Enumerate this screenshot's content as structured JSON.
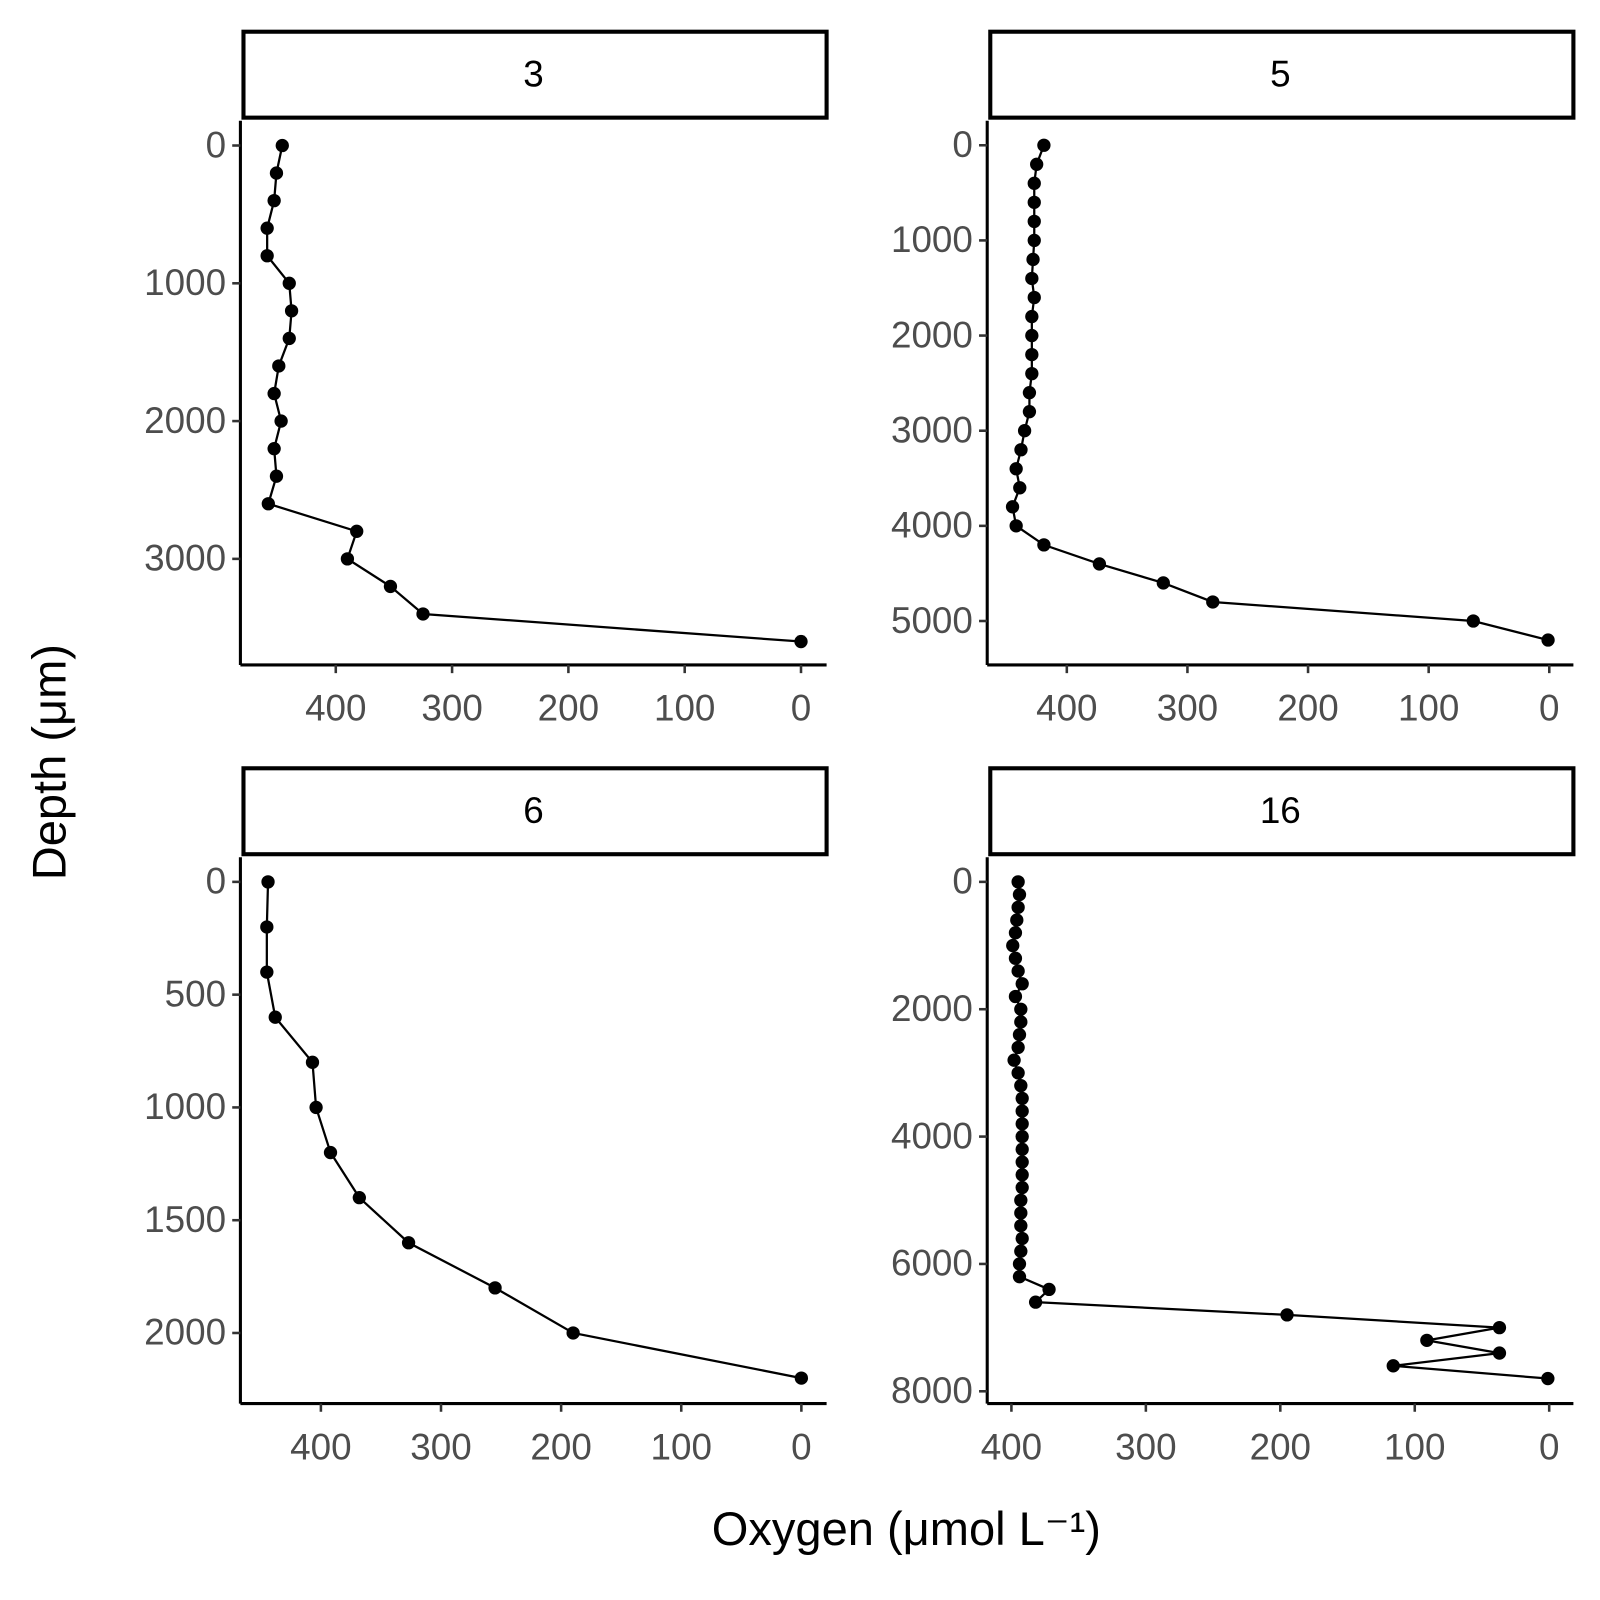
{
  "axis_labels": {
    "x": "Oxygen (μmol L⁻¹)",
    "y": "Depth (μm)"
  },
  "chart_data": [
    {
      "type": "line",
      "title": "3",
      "color": "#000000",
      "x_reversed": true,
      "y_reversed": true,
      "xlim": [
        -22,
        482
      ],
      "ylim": [
        -180,
        3770
      ],
      "xticks": [
        400,
        300,
        200,
        100,
        0
      ],
      "yticks": [
        0,
        1000,
        2000,
        3000
      ],
      "x": [
        446,
        451,
        453,
        459,
        459,
        440,
        438,
        440,
        449,
        453,
        447,
        453,
        451,
        458,
        382,
        390,
        353,
        325,
        0
      ],
      "y": [
        0,
        200,
        400,
        600,
        800,
        1000,
        1200,
        1400,
        1600,
        1800,
        2000,
        2200,
        2400,
        2600,
        2800,
        3000,
        3200,
        3400,
        3600
      ]
    },
    {
      "type": "line",
      "title": "5",
      "color": "#000000",
      "x_reversed": true,
      "y_reversed": true,
      "xlim": [
        -20,
        466
      ],
      "ylim": [
        -258,
        5462
      ],
      "xticks": [
        400,
        300,
        200,
        100,
        0
      ],
      "yticks": [
        0,
        1000,
        2000,
        3000,
        4000,
        5000
      ],
      "x": [
        419,
        425,
        427,
        427,
        427,
        427,
        428,
        429,
        427,
        429,
        429,
        429,
        429,
        431,
        431,
        435,
        438,
        442,
        439,
        445,
        442,
        419,
        373,
        320,
        279,
        63,
        1
      ],
      "y": [
        0,
        200,
        400,
        600,
        800,
        1000,
        1200,
        1400,
        1600,
        1800,
        2000,
        2200,
        2400,
        2600,
        2800,
        3000,
        3200,
        3400,
        3600,
        3800,
        4000,
        4200,
        4400,
        4600,
        4800,
        5000,
        5200
      ]
    },
    {
      "type": "line",
      "title": "6",
      "color": "#000000",
      "x_reversed": true,
      "y_reversed": true,
      "xlim": [
        -21,
        467
      ],
      "ylim": [
        -109,
        2313
      ],
      "xticks": [
        400,
        300,
        200,
        100,
        0
      ],
      "yticks": [
        0,
        500,
        1000,
        1500,
        2000
      ],
      "x": [
        444,
        445,
        445,
        438,
        407,
        404,
        392,
        368,
        327,
        255,
        190,
        0
      ],
      "y": [
        0,
        200,
        400,
        600,
        800,
        1000,
        1200,
        1400,
        1600,
        1800,
        2000,
        2200
      ]
    },
    {
      "type": "line",
      "title": "16",
      "color": "#000000",
      "x_reversed": true,
      "y_reversed": true,
      "xlim": [
        -18,
        418
      ],
      "ylim": [
        -386,
        8193
      ],
      "xticks": [
        400,
        300,
        200,
        100,
        0
      ],
      "yticks": [
        0,
        2000,
        4000,
        6000,
        8000
      ],
      "x": [
        395,
        394,
        395,
        396,
        397,
        399,
        397,
        395,
        392,
        397,
        393,
        393,
        394,
        395,
        398,
        395,
        393,
        392,
        392,
        392,
        392,
        392,
        392,
        392,
        392,
        393,
        393,
        393,
        392,
        393,
        394,
        394,
        372,
        382,
        195,
        37,
        91,
        37,
        116,
        1
      ],
      "y": [
        0,
        200,
        400,
        600,
        800,
        1000,
        1200,
        1400,
        1600,
        1800,
        2000,
        2200,
        2400,
        2600,
        2800,
        3000,
        3200,
        3400,
        3600,
        3800,
        4000,
        4200,
        4400,
        4600,
        4800,
        5000,
        5200,
        5400,
        5600,
        5800,
        6000,
        6200,
        6400,
        6600,
        6800,
        7000,
        7200,
        7400,
        7600,
        7800
      ]
    }
  ]
}
